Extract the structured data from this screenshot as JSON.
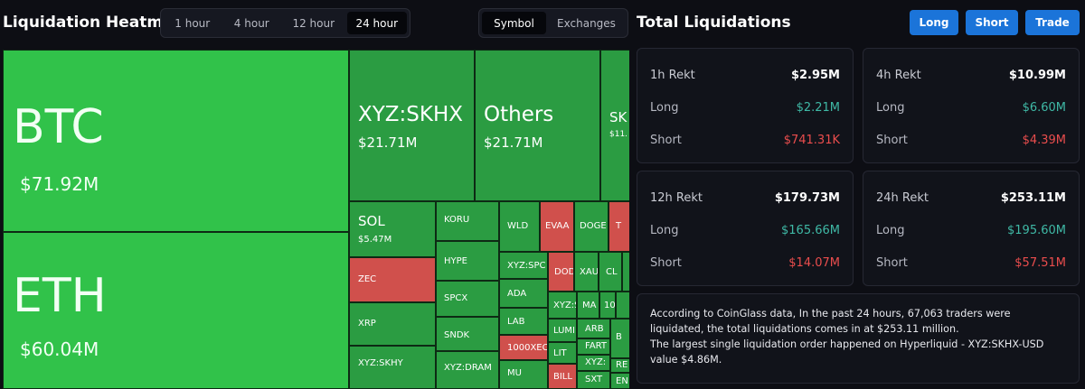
{
  "heatmap": {
    "title": "Liquidation Heatmap",
    "time_tabs": [
      "1 hour",
      "4 hour",
      "12 hour",
      "24 hour"
    ],
    "active_time_tab": "24 hour",
    "group_tabs": [
      "Symbol",
      "Exchanges"
    ],
    "active_group_tab": "Symbol",
    "tiles": {
      "btc": {
        "symbol": "BTC",
        "value": "$71.92M"
      },
      "eth": {
        "symbol": "ETH",
        "value": "$60.04M"
      },
      "xyzskhx": {
        "symbol": "XYZ:SKHX",
        "value": "$21.71M"
      },
      "others": {
        "symbol": "Others",
        "value": "$21.71M"
      },
      "sk": {
        "symbol": "SK",
        "value": "$11."
      },
      "sol": {
        "symbol": "SOL",
        "value": "$5.47M"
      },
      "koru": {
        "symbol": "KORU"
      },
      "wld": {
        "symbol": "WLD"
      },
      "evaa": {
        "symbol": "EVAA"
      },
      "doge": {
        "symbol": "DOGE"
      },
      "t": {
        "symbol": "T"
      },
      "zec": {
        "symbol": "ZEC"
      },
      "hype": {
        "symbol": "HYPE"
      },
      "xyzspc": {
        "symbol": "XYZ:SPC"
      },
      "dod": {
        "symbol": "DOD"
      },
      "xau": {
        "symbol": "XAU"
      },
      "cl": {
        "symbol": "CL"
      },
      "xrp": {
        "symbol": "XRP"
      },
      "spcx": {
        "symbol": "SPCX"
      },
      "ada": {
        "symbol": "ADA"
      },
      "xyzs": {
        "symbol": "XYZ:S"
      },
      "ma": {
        "symbol": "MA"
      },
      "ten": {
        "symbol": "10"
      },
      "lab": {
        "symbol": "LAB"
      },
      "lumi": {
        "symbol": "LUMI"
      },
      "xyzskhy": {
        "symbol": "XYZ:SKHY"
      },
      "sndk": {
        "symbol": "SNDK"
      },
      "k1000xec": {
        "symbol": "1000XEC"
      },
      "arb": {
        "symbol": "ARB"
      },
      "b": {
        "symbol": "B"
      },
      "lit": {
        "symbol": "LIT"
      },
      "fart": {
        "symbol": "FART"
      },
      "xyzdram": {
        "symbol": "XYZ:DRAM"
      },
      "mu": {
        "symbol": "MU"
      },
      "xyz2": {
        "symbol": "XYZ:"
      },
      "re": {
        "symbol": "RE"
      },
      "bill": {
        "symbol": "BILL"
      },
      "sxt": {
        "symbol": "SXT"
      },
      "en": {
        "symbol": "EN"
      }
    },
    "colors": {
      "green_bright": "#31c24a",
      "green": "#2b9c42",
      "green_dark": "#258a3a",
      "red": "#d0504c"
    }
  },
  "totals": {
    "title": "Total Liquidations",
    "buttons": {
      "long": "Long",
      "short": "Short",
      "trade": "Trade"
    },
    "cards": {
      "h1": {
        "title": "1h Rekt",
        "total": "$2.95M",
        "long_label": "Long",
        "long": "$2.21M",
        "short_label": "Short",
        "short": "$741.31K"
      },
      "h4": {
        "title": "4h Rekt",
        "total": "$10.99M",
        "long_label": "Long",
        "long": "$6.60M",
        "short_label": "Short",
        "short": "$4.39M"
      },
      "h12": {
        "title": "12h Rekt",
        "total": "$179.73M",
        "long_label": "Long",
        "long": "$165.66M",
        "short_label": "Short",
        "short": "$14.07M"
      },
      "h24": {
        "title": "24h Rekt",
        "total": "$253.11M",
        "long_label": "Long",
        "long": "$195.60M",
        "short_label": "Short",
        "short": "$57.51M"
      }
    },
    "note": {
      "line1": "According to CoinGlass data, In the past 24 hours, 67,063 traders were liquidated, the total liquidations comes in at $253.11 million.",
      "line2": "The largest single liquidation order happened on Hyperliquid - XYZ:SKHX-USD value $4.86M."
    }
  }
}
